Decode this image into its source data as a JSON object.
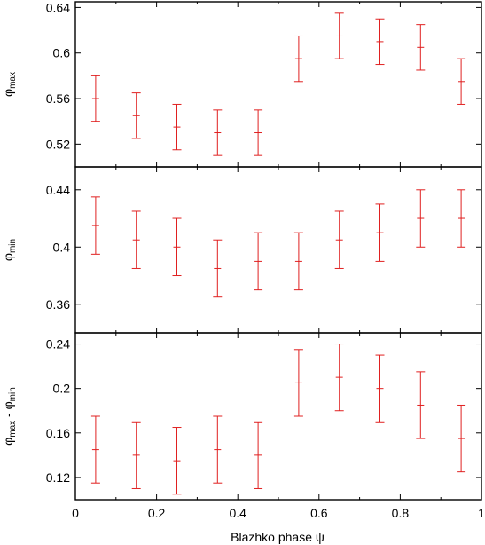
{
  "chart_data": [
    {
      "type": "scatter",
      "error_bars": true,
      "ylabel": "φmax",
      "ylabel_main": "φ",
      "ylabel_sub": "max",
      "ylim": [
        0.5,
        0.645
      ],
      "yticks": [
        0.52,
        0.56,
        0.6,
        0.64
      ],
      "ytick_labels": [
        "0.52",
        "0.56",
        "0.6",
        "0.64"
      ],
      "x": [
        0.05,
        0.15,
        0.25,
        0.35,
        0.45,
        0.55,
        0.65,
        0.75,
        0.85,
        0.95
      ],
      "y": [
        0.56,
        0.545,
        0.535,
        0.53,
        0.53,
        0.595,
        0.615,
        0.61,
        0.605,
        0.575
      ],
      "yerr": [
        0.02,
        0.02,
        0.02,
        0.02,
        0.02,
        0.02,
        0.02,
        0.02,
        0.02,
        0.02
      ],
      "color": "#e02020"
    },
    {
      "type": "scatter",
      "error_bars": true,
      "ylabel": "φmin",
      "ylabel_main": "φ",
      "ylabel_sub": "min",
      "ylim": [
        0.34,
        0.456
      ],
      "yticks": [
        0.36,
        0.4,
        0.44
      ],
      "ytick_labels": [
        "0.36",
        "0.4",
        "0.44"
      ],
      "x": [
        0.05,
        0.15,
        0.25,
        0.35,
        0.45,
        0.55,
        0.65,
        0.75,
        0.85,
        0.95
      ],
      "y": [
        0.415,
        0.405,
        0.4,
        0.385,
        0.39,
        0.39,
        0.405,
        0.41,
        0.42,
        0.42
      ],
      "yerr": [
        0.02,
        0.02,
        0.02,
        0.02,
        0.02,
        0.02,
        0.02,
        0.02,
        0.02,
        0.02
      ],
      "color": "#e02020"
    },
    {
      "type": "scatter",
      "error_bars": true,
      "ylabel": "φmax - φmin",
      "ylabel_parts": [
        {
          "t": "φ",
          "sub": false
        },
        {
          "t": "max",
          "sub": true
        },
        {
          "t": " - φ",
          "sub": false
        },
        {
          "t": "min",
          "sub": true
        }
      ],
      "ylim": [
        0.1,
        0.25
      ],
      "yticks": [
        0.12,
        0.16,
        0.2,
        0.24
      ],
      "ytick_labels": [
        "0.12",
        "0.16",
        "0.2",
        "0.24"
      ],
      "x": [
        0.05,
        0.15,
        0.25,
        0.35,
        0.45,
        0.55,
        0.65,
        0.75,
        0.85,
        0.95
      ],
      "y": [
        0.145,
        0.14,
        0.135,
        0.145,
        0.14,
        0.205,
        0.21,
        0.2,
        0.185,
        0.155
      ],
      "yerr": [
        0.03,
        0.03,
        0.03,
        0.03,
        0.03,
        0.03,
        0.03,
        0.03,
        0.03,
        0.03
      ],
      "color": "#e02020"
    }
  ],
  "xaxis": {
    "label": "Blazhko phase ψ",
    "xlim": [
      0,
      1
    ],
    "xticks": [
      0,
      0.2,
      0.4,
      0.6,
      0.8,
      1
    ],
    "xtick_labels": [
      "0",
      "0.2",
      "0.4",
      "0.6",
      "0.8",
      "1"
    ],
    "minor_step": 0.1
  }
}
